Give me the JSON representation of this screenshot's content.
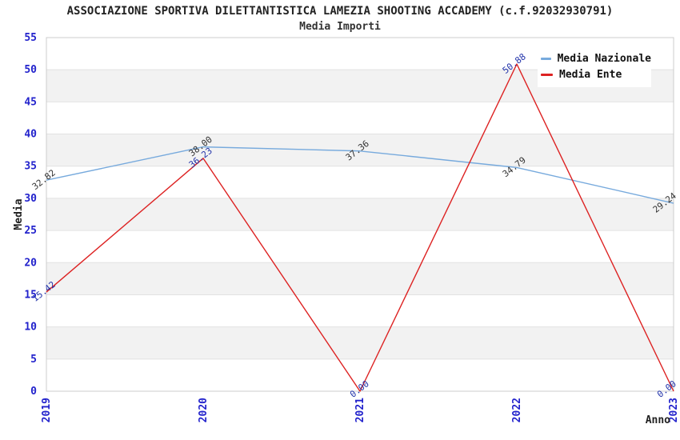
{
  "header": {
    "title": "ASSOCIAZIONE SPORTIVA DILETTANTISTICA LAMEZIA SHOOTING ACCADEMY (c.f.92032930791)",
    "subtitle": "Media Importi"
  },
  "chart_data": {
    "type": "line",
    "x_categories": [
      "2019",
      "2020",
      "2021",
      "2022",
      "2023"
    ],
    "xlabel": "Anno",
    "ylabel": "Media",
    "ylim": [
      0,
      55
    ],
    "ytick_step": 5,
    "yticks": [
      0,
      5,
      10,
      15,
      20,
      25,
      30,
      35,
      40,
      45,
      50,
      55
    ],
    "grid": "horizontal-bands",
    "legend_position": "top-right",
    "series": [
      {
        "name": "Media Nazionale",
        "color": "#77AADD",
        "label_color": "#333333",
        "values": [
          32.82,
          38.0,
          37.36,
          34.79,
          29.24
        ]
      },
      {
        "name": "Media Ente",
        "color": "#DD2222",
        "label_color": "#2233AA",
        "values": [
          15.42,
          36.23,
          0.0,
          50.88,
          0.0
        ]
      }
    ],
    "point_labels": {
      "series_0": [
        "32.82",
        "38.00",
        "37.36",
        "34.79",
        "29.24"
      ],
      "series_1": [
        "15.42",
        "36.23",
        "0.00",
        "50.88",
        "0.00"
      ]
    }
  },
  "colors": {
    "tick_label": "#2222CC",
    "axis_label": "#222222",
    "band_fill": "#F2F2F2",
    "plot_border": "#CCCCCC",
    "gridline": "#E2E2E2",
    "background": "#FFFFFF"
  }
}
